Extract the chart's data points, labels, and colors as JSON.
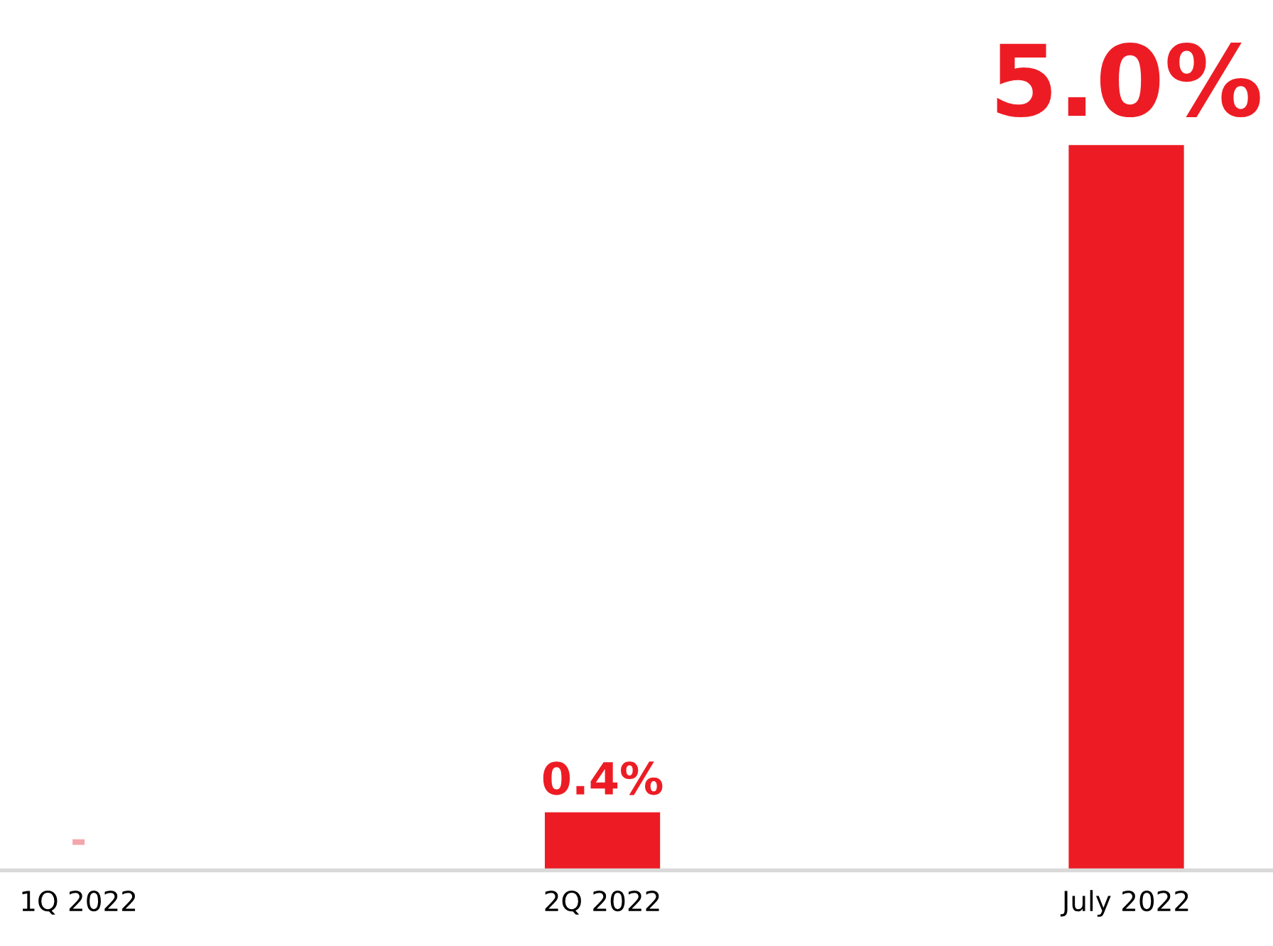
{
  "chart_data": {
    "type": "bar",
    "categories": [
      "1Q 2022",
      "2Q 2022",
      "July 2022"
    ],
    "values": [
      0,
      0.4,
      5.0
    ],
    "colors": [
      "#f4a6ad",
      "#ed1c24",
      "#ed1c24"
    ],
    "value_labels": [
      "-",
      "0.4%",
      "5.0%"
    ],
    "grid": false,
    "legend": false
  }
}
